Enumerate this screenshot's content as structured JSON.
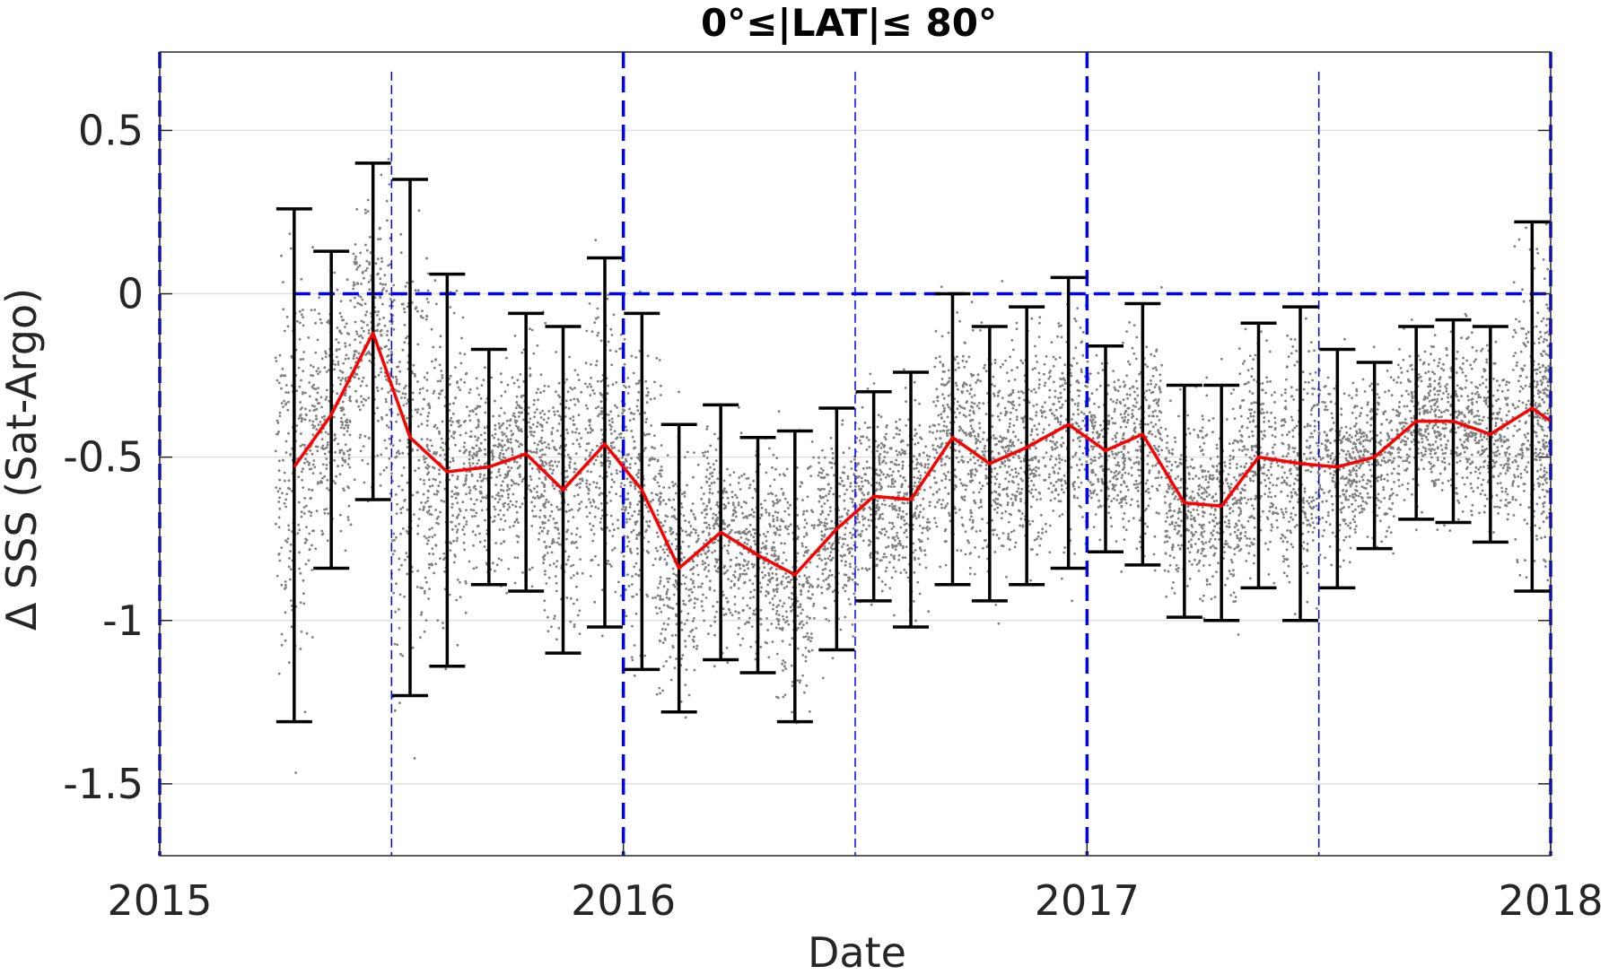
{
  "chart_data": {
    "type": "scatter",
    "title": "0°≤|LAT|≤ 80°",
    "xlabel": "Date",
    "ylabel": "Δ SSS (Sat-Argo)",
    "xlim": [
      2015,
      2018
    ],
    "ylim": [
      -1.72,
      0.74
    ],
    "x_ticks": [
      2015,
      2016,
      2017,
      2018
    ],
    "x_tick_labels": [
      "2015",
      "2016",
      "2017",
      "2018"
    ],
    "y_ticks": [
      0.5,
      0,
      -0.5,
      -1,
      -1.5
    ],
    "y_tick_labels": [
      "0.5",
      "0",
      "-0.5",
      "-1",
      "-1.5"
    ],
    "grid": true,
    "colors": {
      "scatter": "#808080",
      "mean_line": "#ff0000",
      "error_bars": "#000000",
      "reference_lines": "#0000ff",
      "grid": "#e0e0e0"
    },
    "reference_lines": {
      "horizontal_zero": {
        "y": 0,
        "style": "dashed",
        "x_range": [
          2015.29,
          2018
        ]
      },
      "year_boundaries": [
        2015,
        2016,
        2017,
        2018
      ],
      "mid_year": [
        2015.5,
        2016.5,
        2017.5
      ]
    },
    "scatter_description": "Dense gray point cloud of individual satellite minus Argo salinity differences",
    "series": [
      {
        "kind": "monthly_mean_with_error_bars",
        "x": [
          2015.29,
          2015.37,
          2015.46,
          2015.54,
          2015.62,
          2015.71,
          2015.79,
          2015.87,
          2015.96,
          2016.04,
          2016.12,
          2016.21,
          2016.29,
          2016.37,
          2016.46,
          2016.54,
          2016.62,
          2016.71,
          2016.79,
          2016.87,
          2016.96,
          2017.04,
          2017.12,
          2017.21,
          2017.29,
          2017.37,
          2017.46,
          2017.54,
          2017.62,
          2017.71,
          2017.79,
          2017.87,
          2017.96,
          2018.0
        ],
        "mean": [
          -0.53,
          -0.37,
          -0.12,
          -0.44,
          -0.545,
          -0.53,
          -0.49,
          -0.6,
          -0.46,
          -0.6,
          -0.84,
          -0.73,
          -0.8,
          -0.86,
          -0.72,
          -0.62,
          -0.63,
          -0.44,
          -0.52,
          -0.47,
          -0.4,
          -0.48,
          -0.43,
          -0.64,
          -0.65,
          -0.5,
          -0.52,
          -0.53,
          -0.5,
          -0.39,
          -0.39,
          -0.43,
          -0.35,
          -0.39
        ],
        "lower": [
          -1.31,
          -0.84,
          -0.63,
          -1.23,
          -1.14,
          -0.89,
          -0.91,
          -1.1,
          -1.02,
          -1.15,
          -1.28,
          -1.12,
          -1.16,
          -1.31,
          -1.09,
          -0.94,
          -1.02,
          -0.89,
          -0.94,
          -0.89,
          -0.84,
          -0.79,
          -0.83,
          -0.99,
          -1.0,
          -0.9,
          -1.0,
          -0.9,
          -0.78,
          -0.69,
          -0.7,
          -0.76,
          -0.91,
          null
        ],
        "upper": [
          0.26,
          0.13,
          0.4,
          0.35,
          0.06,
          -0.17,
          -0.06,
          -0.1,
          0.11,
          -0.06,
          -0.4,
          -0.34,
          -0.44,
          -0.42,
          -0.35,
          -0.3,
          -0.24,
          0.0,
          -0.1,
          -0.04,
          0.05,
          -0.16,
          -0.03,
          -0.28,
          -0.28,
          -0.09,
          -0.04,
          -0.17,
          -0.21,
          -0.1,
          -0.08,
          -0.1,
          0.22,
          null
        ]
      }
    ]
  }
}
